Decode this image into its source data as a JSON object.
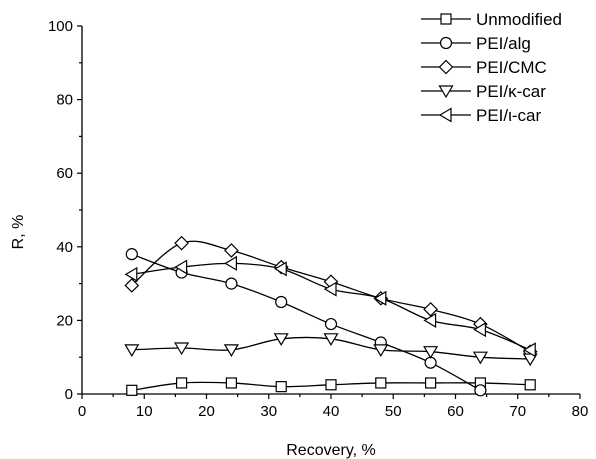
{
  "chart_data": {
    "type": "line",
    "xlabel": "Recovery, %",
    "ylabel": "R, %",
    "xlim": [
      0,
      80
    ],
    "ylim": [
      0,
      100
    ],
    "x_ticks": [
      0,
      10,
      20,
      30,
      40,
      50,
      60,
      70,
      80
    ],
    "y_ticks": [
      0,
      20,
      40,
      60,
      80,
      100
    ],
    "grid": false,
    "legend": "top-right",
    "series": [
      {
        "name": "Unmodified",
        "marker": "square",
        "x": [
          8,
          16,
          24,
          32,
          40,
          48,
          56,
          64,
          72
        ],
        "y": [
          1,
          3,
          3,
          2,
          2.5,
          3,
          3,
          3,
          2.5
        ]
      },
      {
        "name": "PEI/alg",
        "marker": "circle",
        "x": [
          8,
          16,
          24,
          32,
          40,
          48,
          56,
          64
        ],
        "y": [
          38,
          33,
          30,
          25,
          19,
          14,
          8.5,
          1
        ]
      },
      {
        "name": "PEI/CMC",
        "marker": "diamond",
        "x": [
          8,
          16,
          24,
          32,
          40,
          48,
          56,
          64,
          72
        ],
        "y": [
          29.5,
          41,
          39,
          34.5,
          30.5,
          26,
          23,
          19,
          11.5
        ]
      },
      {
        "name": "PEI/κ-car",
        "marker": "triangle-down",
        "x": [
          8,
          16,
          24,
          32,
          40,
          48,
          56,
          64,
          72
        ],
        "y": [
          12,
          12.5,
          12,
          15,
          15,
          12,
          11.5,
          10,
          9.5
        ]
      },
      {
        "name": "PEI/ι-car",
        "marker": "triangle-left",
        "x": [
          8,
          16,
          24,
          32,
          40,
          48,
          56,
          64,
          72
        ],
        "y": [
          32.5,
          34.5,
          35.5,
          34,
          28.5,
          26,
          20,
          17.5,
          12
        ]
      }
    ]
  }
}
